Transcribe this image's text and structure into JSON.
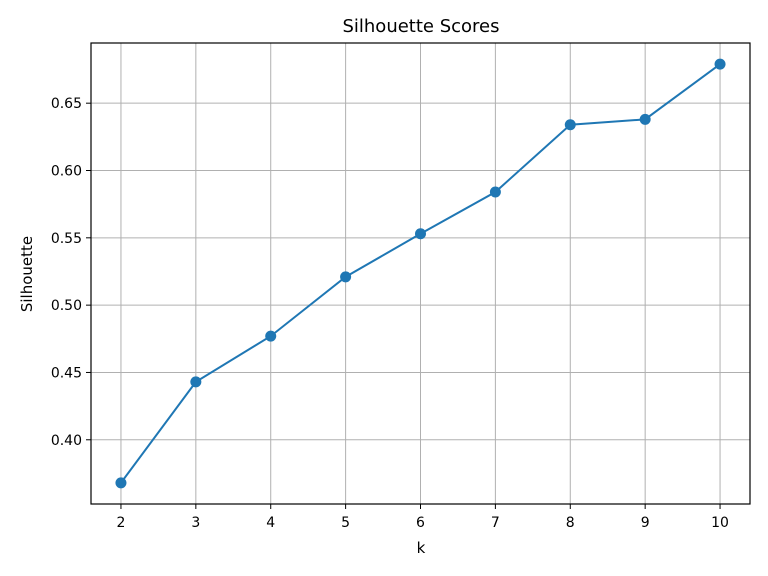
{
  "chart_data": {
    "type": "line",
    "title": "Silhouette Scores",
    "xlabel": "k",
    "ylabel": "Silhouette",
    "x": [
      2,
      3,
      4,
      5,
      6,
      7,
      8,
      9,
      10
    ],
    "series": [
      {
        "values": [
          0.368,
          0.443,
          0.477,
          0.521,
          0.553,
          0.584,
          0.634,
          0.638,
          0.679
        ],
        "color": "#1f77b4",
        "marker": "circle"
      }
    ],
    "xlim": [
      1.6,
      10.4
    ],
    "ylim": [
      0.3523,
      0.6947
    ],
    "xticks": [
      2,
      3,
      4,
      5,
      6,
      7,
      8,
      9,
      10
    ],
    "xtick_labels": [
      "2",
      "3",
      "4",
      "5",
      "6",
      "7",
      "8",
      "9",
      "10"
    ],
    "yticks": [
      0.4,
      0.45,
      0.5,
      0.55,
      0.6,
      0.65
    ],
    "ytick_labels": [
      "0.40",
      "0.45",
      "0.50",
      "0.55",
      "0.60",
      "0.65"
    ],
    "grid": true,
    "grid_color": "#b0b0b0"
  }
}
